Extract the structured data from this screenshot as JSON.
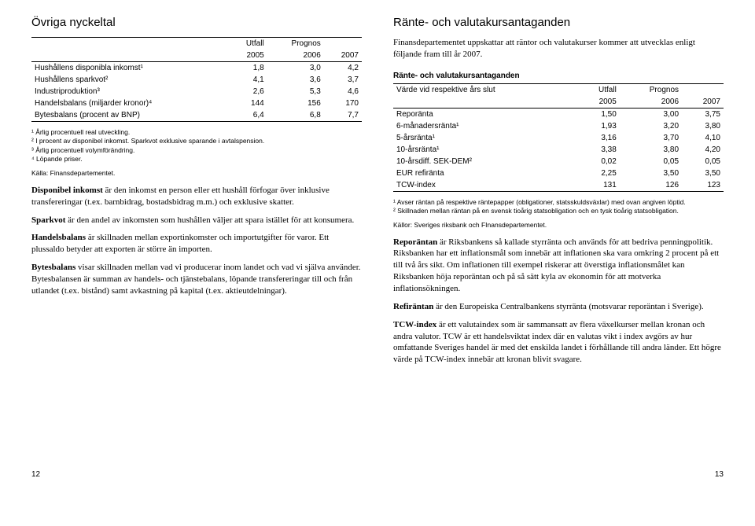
{
  "left": {
    "title": "Övriga nyckeltal",
    "table": {
      "head_group1": [
        "",
        "Utfall",
        "Prognos",
        ""
      ],
      "head_years": [
        "",
        "2005",
        "2006",
        "2007"
      ],
      "rows": [
        [
          "Hushållens disponibla inkomst¹",
          "1,8",
          "3,0",
          "4,2"
        ],
        [
          "Hushållens sparkvot²",
          "4,1",
          "3,6",
          "3,7"
        ],
        [
          "Industriproduktion³",
          "2,6",
          "5,3",
          "4,6"
        ],
        [
          "Handelsbalans (miljarder kronor)⁴",
          "144",
          "156",
          "170"
        ],
        [
          "Bytesbalans (procent av BNP)",
          "6,4",
          "6,8",
          "7,7"
        ]
      ]
    },
    "footnotes": [
      "¹ Årlig procentuell real utveckling.",
      "² I procent av disponibel inkomst. Sparkvot exklusive sparande i avtalspension.",
      "³ Årlig procentuell volymförändring.",
      "⁴ Löpande priser."
    ],
    "source": "Källa: Finansdepartementet.",
    "paras": [
      {
        "lead": "Disponibel inkomst",
        "rest": " är den inkomst en person eller ett hushåll förfogar över inklusive transfereringar (t.ex. barnbidrag, bostadsbidrag m.m.) och exklusive skatter."
      },
      {
        "lead": "Sparkvot",
        "rest": " är den andel av inkomsten som hushållen väljer att spara istället för att konsumera."
      },
      {
        "lead": "Handelsbalans",
        "rest": " är skillnaden mellan exportinkomster och importutgifter för varor. Ett plussaldo betyder att exporten är större än importen."
      },
      {
        "lead": "Bytesbalans",
        "rest": " visar skillnaden mellan vad vi producerar inom landet och vad vi själva använder. Bytesbalansen är summan av handels- och tjänstebalans, löpande transfereringar till och från utlandet (t.ex. bistånd) samt avkastning på kapital (t.ex. aktieutdelningar)."
      }
    ],
    "pagenum": "12"
  },
  "right": {
    "title": "Ränte- och valutakursantaganden",
    "intro": "Finansdepartementet uppskattar att räntor och valutakurser kommer att utvecklas enligt följande fram till år 2007.",
    "subhead": "Ränte- och valutakursantaganden",
    "table": {
      "head_group1": [
        "Värde vid respektive års slut",
        "Utfall",
        "Prognos",
        ""
      ],
      "head_years": [
        "",
        "2005",
        "2006",
        "2007"
      ],
      "rows": [
        [
          "Reporänta",
          "1,50",
          "3,00",
          "3,75"
        ],
        [
          "6-månadersränta¹",
          "1,93",
          "3,20",
          "3,80"
        ],
        [
          "5-årsränta¹",
          "3,16",
          "3,70",
          "4,10"
        ],
        [
          "10-årsränta¹",
          "3,38",
          "3,80",
          "4,20"
        ],
        [
          "10-årsdiff. SEK-DEM²",
          "0,02",
          "0,05",
          "0,05"
        ],
        [
          "EUR refiränta",
          "2,25",
          "3,50",
          "3,50"
        ],
        [
          "TCW-index",
          "131",
          "126",
          "123"
        ]
      ]
    },
    "footnotes": [
      "¹ Avser räntan på respektive räntepapper (obligationer, statsskuldsväxlar) med ovan angiven löptid.",
      "² Skillnaden mellan räntan på en svensk tioårig statsobligation och en tysk tioårig statsobligation."
    ],
    "source": "Källor: Sveriges riksbank och FInansdepartementet.",
    "paras": [
      {
        "lead": "Reporäntan",
        "rest": " är Riksbankens så kallade styrränta och används för att bedriva penningpolitik. Riksbanken har ett inflationsmål som innebär att inflationen ska vara omkring 2 procent på ett till två års sikt. Om inflationen till exempel riskerar att överstiga inflationsmålet kan Riksbanken höja reporäntan och på så sätt kyla av ekonomin för att motverka inflationsökningen."
      },
      {
        "lead": "Refiräntan",
        "rest": " är den Europeiska Centralbankens styrränta (motsvarar reporäntan i Sverige)."
      },
      {
        "lead": "TCW-index",
        "rest": " är ett valutaindex som är sammansatt av flera växelkurser mellan kronan och andra valutor. TCW är ett handelsviktat index där en valutas vikt i index avgörs av hur omfattande Sveriges handel är med det enskilda landet i förhållande till andra länder. Ett högre värde på TCW-index innebär att kronan blivit svagare."
      }
    ],
    "pagenum": "13"
  }
}
